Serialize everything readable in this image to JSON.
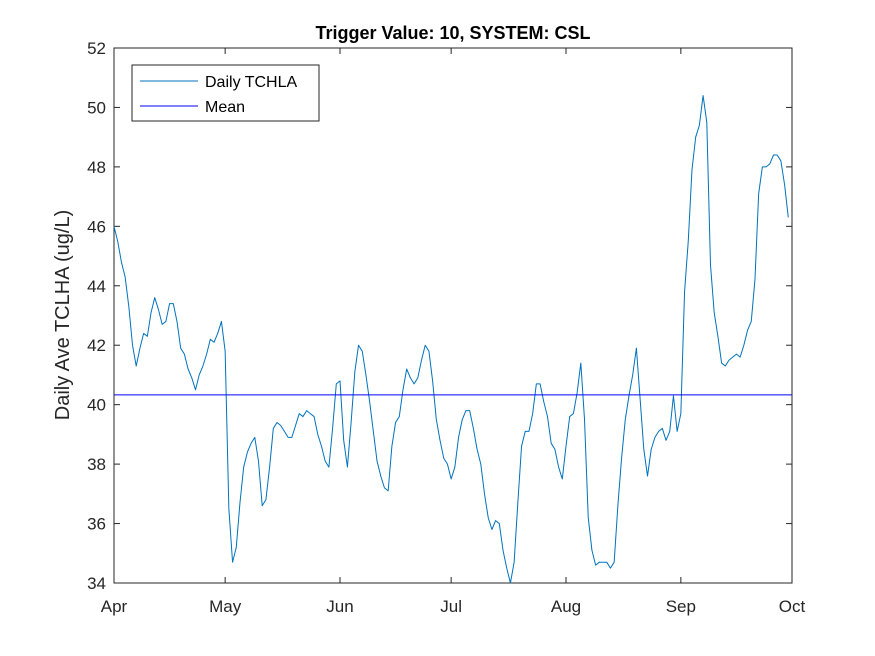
{
  "chart_data": {
    "type": "line",
    "title": "Trigger Value: 10, SYSTEM: CSL",
    "xlabel": "",
    "ylabel": "Daily Ave TCLHA (ug/L)",
    "x_domain_days": [
      0,
      183
    ],
    "ylim": [
      34,
      52
    ],
    "y_ticks": [
      34,
      36,
      38,
      40,
      42,
      44,
      46,
      48,
      50,
      52
    ],
    "x_ticks": [
      {
        "label": "Apr",
        "day": 0
      },
      {
        "label": "May",
        "day": 30
      },
      {
        "label": "Jun",
        "day": 61
      },
      {
        "label": "Jul",
        "day": 91
      },
      {
        "label": "Aug",
        "day": 122
      },
      {
        "label": "Sep",
        "day": 153
      },
      {
        "label": "Oct",
        "day": 183
      }
    ],
    "grid": false,
    "legend": {
      "placement": "top-left",
      "entries": [
        "Daily TCHLA",
        "Mean"
      ]
    },
    "series": [
      {
        "name": "Daily TCHLA",
        "color": "#0072BD",
        "points": [
          [
            0,
            46.0
          ],
          [
            1,
            45.5
          ],
          [
            2,
            44.8
          ],
          [
            3,
            44.3
          ],
          [
            4,
            43.3
          ],
          [
            5,
            42.0
          ],
          [
            6,
            41.3
          ],
          [
            7,
            41.9
          ],
          [
            8,
            42.4
          ],
          [
            9,
            42.3
          ],
          [
            10,
            43.1
          ],
          [
            11,
            43.6
          ],
          [
            12,
            43.2
          ],
          [
            13,
            42.7
          ],
          [
            14,
            42.8
          ],
          [
            15,
            43.4
          ],
          [
            16,
            43.4
          ],
          [
            17,
            42.8
          ],
          [
            18,
            41.9
          ],
          [
            19,
            41.7
          ],
          [
            20,
            41.2
          ],
          [
            21,
            40.9
          ],
          [
            22,
            40.5
          ],
          [
            23,
            41.0
          ],
          [
            24,
            41.3
          ],
          [
            25,
            41.7
          ],
          [
            26,
            42.2
          ],
          [
            27,
            42.1
          ],
          [
            28,
            42.4
          ],
          [
            29,
            42.8
          ],
          [
            30,
            41.8
          ],
          [
            31,
            36.5
          ],
          [
            32,
            34.7
          ],
          [
            33,
            35.2
          ],
          [
            34,
            36.7
          ],
          [
            35,
            37.9
          ],
          [
            36,
            38.4
          ],
          [
            37,
            38.7
          ],
          [
            38,
            38.9
          ],
          [
            39,
            38.1
          ],
          [
            40,
            36.6
          ],
          [
            41,
            36.8
          ],
          [
            42,
            37.9
          ],
          [
            43,
            39.2
          ],
          [
            44,
            39.4
          ],
          [
            45,
            39.3
          ],
          [
            46,
            39.1
          ],
          [
            47,
            38.9
          ],
          [
            48,
            38.9
          ],
          [
            49,
            39.3
          ],
          [
            50,
            39.7
          ],
          [
            51,
            39.6
          ],
          [
            52,
            39.8
          ],
          [
            53,
            39.7
          ],
          [
            54,
            39.6
          ],
          [
            55,
            39.0
          ],
          [
            56,
            38.6
          ],
          [
            57,
            38.1
          ],
          [
            58,
            37.9
          ],
          [
            59,
            39.2
          ],
          [
            60,
            40.7
          ],
          [
            61,
            40.8
          ],
          [
            62,
            38.8
          ],
          [
            63,
            37.9
          ],
          [
            64,
            39.4
          ],
          [
            65,
            41.1
          ],
          [
            66,
            42.0
          ],
          [
            67,
            41.8
          ],
          [
            68,
            41.0
          ],
          [
            69,
            40.1
          ],
          [
            70,
            39.1
          ],
          [
            71,
            38.1
          ],
          [
            72,
            37.6
          ],
          [
            73,
            37.2
          ],
          [
            74,
            37.1
          ],
          [
            75,
            38.6
          ],
          [
            76,
            39.4
          ],
          [
            77,
            39.6
          ],
          [
            78,
            40.5
          ],
          [
            79,
            41.2
          ],
          [
            80,
            40.9
          ],
          [
            81,
            40.7
          ],
          [
            82,
            40.9
          ],
          [
            83,
            41.5
          ],
          [
            84,
            42.0
          ],
          [
            85,
            41.8
          ],
          [
            86,
            40.8
          ],
          [
            87,
            39.5
          ],
          [
            88,
            38.8
          ],
          [
            89,
            38.2
          ],
          [
            90,
            38.0
          ],
          [
            91,
            37.5
          ],
          [
            92,
            37.9
          ],
          [
            93,
            38.9
          ],
          [
            94,
            39.5
          ],
          [
            95,
            39.8
          ],
          [
            96,
            39.8
          ],
          [
            97,
            39.2
          ],
          [
            98,
            38.5
          ],
          [
            99,
            38.0
          ],
          [
            100,
            37.0
          ],
          [
            101,
            36.2
          ],
          [
            102,
            35.8
          ],
          [
            103,
            36.1
          ],
          [
            104,
            36.0
          ],
          [
            105,
            35.1
          ],
          [
            106,
            34.5
          ],
          [
            107,
            34.0
          ],
          [
            108,
            34.7
          ],
          [
            109,
            36.7
          ],
          [
            110,
            38.6
          ],
          [
            111,
            39.1
          ],
          [
            112,
            39.1
          ],
          [
            113,
            39.7
          ],
          [
            114,
            40.7
          ],
          [
            115,
            40.7
          ],
          [
            116,
            40.1
          ],
          [
            117,
            39.6
          ],
          [
            118,
            38.7
          ],
          [
            119,
            38.5
          ],
          [
            120,
            37.9
          ],
          [
            121,
            37.5
          ],
          [
            122,
            38.6
          ],
          [
            123,
            39.6
          ],
          [
            124,
            39.7
          ],
          [
            125,
            40.4
          ],
          [
            126,
            41.4
          ],
          [
            127,
            39.5
          ],
          [
            128,
            36.2
          ],
          [
            129,
            35.1
          ],
          [
            130,
            34.6
          ],
          [
            131,
            34.7
          ],
          [
            132,
            34.7
          ],
          [
            133,
            34.7
          ],
          [
            134,
            34.5
          ],
          [
            135,
            34.7
          ],
          [
            136,
            36.6
          ],
          [
            137,
            38.2
          ],
          [
            138,
            39.5
          ],
          [
            139,
            40.3
          ],
          [
            140,
            41.0
          ],
          [
            141,
            41.9
          ],
          [
            142,
            40.2
          ],
          [
            143,
            38.5
          ],
          [
            144,
            37.6
          ],
          [
            145,
            38.5
          ],
          [
            146,
            38.9
          ],
          [
            147,
            39.1
          ],
          [
            148,
            39.2
          ],
          [
            149,
            38.8
          ],
          [
            150,
            39.1
          ],
          [
            151,
            40.3
          ],
          [
            152,
            39.1
          ],
          [
            153,
            39.7
          ],
          [
            154,
            43.8
          ],
          [
            155,
            45.5
          ],
          [
            156,
            47.9
          ],
          [
            157,
            49.0
          ],
          [
            158,
            49.4
          ],
          [
            159,
            50.4
          ],
          [
            160,
            49.5
          ],
          [
            161,
            44.7
          ],
          [
            162,
            43.1
          ],
          [
            163,
            42.3
          ],
          [
            164,
            41.4
          ],
          [
            165,
            41.3
          ],
          [
            166,
            41.5
          ],
          [
            167,
            41.6
          ],
          [
            168,
            41.7
          ],
          [
            169,
            41.6
          ],
          [
            170,
            42.0
          ],
          [
            171,
            42.5
          ],
          [
            172,
            42.8
          ],
          [
            173,
            44.2
          ],
          [
            174,
            47.1
          ],
          [
            175,
            48.0
          ],
          [
            176,
            48.0
          ],
          [
            177,
            48.1
          ],
          [
            178,
            48.4
          ],
          [
            179,
            48.4
          ],
          [
            180,
            48.2
          ],
          [
            181,
            47.4
          ],
          [
            182,
            46.3
          ]
        ]
      },
      {
        "name": "Mean",
        "color": "#0000FF",
        "constant": 40.33
      }
    ]
  }
}
